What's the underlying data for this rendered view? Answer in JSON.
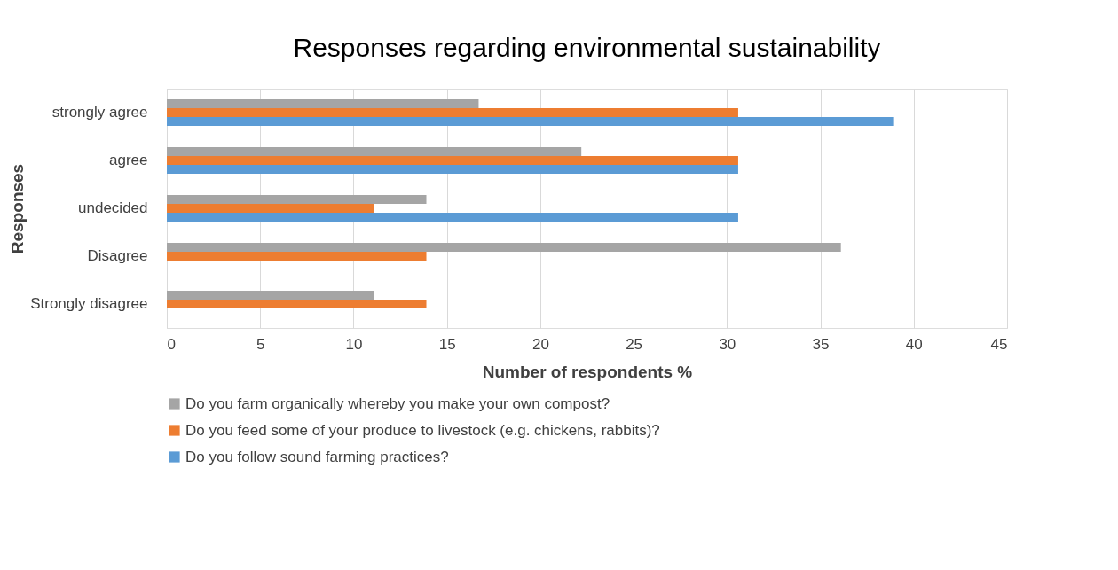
{
  "chart_data": {
    "type": "bar",
    "orientation": "horizontal",
    "title": "Responses regarding environmental sustainability",
    "xlabel": "Number of respondents %",
    "ylabel": "Responses",
    "categories": [
      "strongly agree",
      "agree",
      "undecided",
      "Disagree",
      "Strongly disagree"
    ],
    "series": [
      {
        "name": "Do you farm organically whereby you make your own compost?",
        "color": "#a5a5a5",
        "values": [
          16.7,
          22.2,
          13.9,
          36.1,
          11.1
        ]
      },
      {
        "name": "Do you feed some of your produce to livestock (e.g. chickens, rabbits)?",
        "color": "#ed7d31",
        "values": [
          30.6,
          30.6,
          11.1,
          13.9,
          13.9
        ]
      },
      {
        "name": "Do you follow sound farming practices?",
        "color": "#5b9bd5",
        "values": [
          38.9,
          30.6,
          30.6,
          0,
          0
        ]
      }
    ],
    "xlim": [
      0,
      45
    ],
    "xticks": [
      0,
      5,
      10,
      15,
      20,
      25,
      30,
      35,
      40,
      45
    ],
    "grid": "x",
    "legend": "bottom"
  }
}
